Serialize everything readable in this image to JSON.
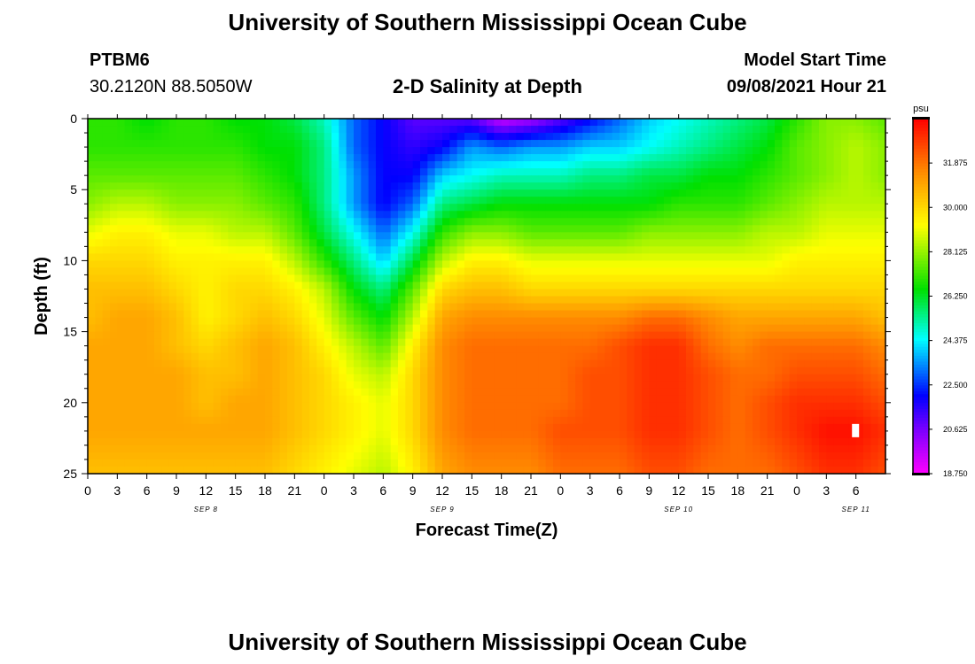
{
  "header": {
    "title": "University of Southern Mississippi Ocean Cube",
    "station_id": "PTBM6",
    "station_coords": "30.2120N  88.5050W",
    "plot_title": "2-D Salinity at Depth",
    "model_label": "Model Start Time",
    "model_time": "09/08/2021 Hour 21"
  },
  "footer": {
    "title": "University of Southern Mississippi Ocean Cube"
  },
  "chart_data": {
    "type": "heatmap",
    "title": "2-D Salinity at Depth",
    "xlabel": "Forecast Time(Z)",
    "ylabel": "Depth (ft)",
    "x_hours_from_start": [
      0,
      81
    ],
    "ylim": [
      0,
      25
    ],
    "x_tick_step_hours": 3,
    "x_tick_labels": [
      "0",
      "3",
      "6",
      "9",
      "12",
      "15",
      "18",
      "21",
      "0",
      "3",
      "6",
      "9",
      "12",
      "15",
      "18",
      "21",
      "0",
      "3",
      "6",
      "9",
      "12",
      "15",
      "18",
      "21",
      "0",
      "3",
      "6"
    ],
    "y_tick_values": [
      0,
      5,
      10,
      15,
      20,
      25
    ],
    "y_tick_labels": [
      "0",
      "5",
      "10",
      "15",
      "20",
      "25"
    ],
    "date_labels": [
      {
        "label": "SEP 8",
        "hour": 12
      },
      {
        "label": "SEP 9",
        "hour": 36
      },
      {
        "label": "SEP 10",
        "hour": 60
      },
      {
        "label": "SEP 11",
        "hour": 78
      }
    ],
    "colorbar": {
      "unit": "psu",
      "min": 18.75,
      "max": 33.75,
      "tick_values": [
        31.875,
        30.0,
        28.125,
        26.25,
        24.375,
        22.5,
        20.625,
        18.75
      ],
      "tick_labels": [
        "31.875",
        "30.000",
        "28.125",
        "26.250",
        "24.375",
        "22.500",
        "20.625",
        "18.750"
      ]
    },
    "grid_hours": [
      0,
      3,
      6,
      9,
      12,
      15,
      18,
      21,
      24,
      27,
      30,
      33,
      36,
      39,
      42,
      45,
      48,
      51,
      54,
      57,
      60,
      63,
      66,
      69,
      72,
      75,
      78,
      81
    ],
    "grid_depths": [
      0,
      2,
      4,
      6,
      8,
      10,
      12,
      14,
      16,
      18,
      20,
      22,
      25
    ],
    "salinity_psu": [
      [
        27.0,
        27.0,
        26.5,
        27.0,
        27.0,
        26.5,
        26.5,
        26.0,
        25.0,
        23.0,
        22.0,
        21.0,
        21.0,
        21.0,
        19.5,
        20.0,
        21.0,
        22.0,
        23.0,
        24.0,
        24.5,
        25.0,
        25.5,
        26.0,
        27.0,
        28.0,
        28.0,
        27.5
      ],
      [
        27.0,
        27.0,
        27.0,
        27.0,
        27.0,
        27.0,
        26.5,
        26.5,
        25.5,
        23.0,
        22.0,
        21.5,
        22.0,
        23.5,
        23.0,
        23.5,
        23.5,
        24.0,
        24.0,
        24.5,
        25.0,
        25.5,
        26.0,
        26.5,
        27.5,
        28.0,
        28.5,
        28.0
      ],
      [
        27.5,
        27.5,
        27.5,
        27.5,
        27.5,
        27.5,
        27.0,
        26.5,
        25.5,
        23.5,
        22.0,
        22.0,
        24.0,
        24.5,
        25.0,
        25.0,
        25.0,
        25.5,
        25.5,
        26.0,
        26.0,
        26.5,
        26.5,
        27.0,
        27.5,
        28.0,
        28.5,
        28.0
      ],
      [
        28.0,
        28.5,
        28.5,
        28.0,
        28.0,
        28.0,
        27.5,
        27.0,
        25.5,
        23.5,
        22.0,
        23.0,
        25.5,
        26.0,
        26.5,
        26.5,
        26.5,
        26.5,
        26.5,
        26.5,
        27.0,
        27.0,
        27.0,
        27.5,
        28.0,
        28.5,
        28.5,
        28.5
      ],
      [
        29.0,
        29.5,
        29.5,
        29.0,
        29.0,
        28.5,
        28.5,
        27.5,
        26.0,
        24.5,
        23.0,
        24.5,
        27.0,
        28.0,
        28.0,
        27.5,
        27.5,
        27.5,
        27.5,
        28.0,
        28.0,
        28.0,
        28.0,
        28.5,
        28.5,
        29.0,
        29.0,
        29.0
      ],
      [
        30.0,
        30.0,
        30.0,
        29.5,
        29.5,
        29.5,
        29.5,
        28.5,
        27.0,
        25.5,
        24.0,
        26.0,
        28.5,
        29.5,
        29.5,
        29.0,
        29.0,
        29.0,
        29.0,
        29.0,
        29.0,
        29.0,
        29.0,
        29.0,
        29.5,
        29.5,
        29.5,
        29.5
      ],
      [
        30.5,
        30.5,
        30.5,
        30.0,
        29.5,
        30.0,
        30.0,
        29.5,
        28.5,
        26.5,
        25.5,
        27.5,
        30.0,
        30.5,
        30.5,
        30.0,
        30.0,
        30.0,
        30.0,
        30.0,
        30.0,
        30.0,
        30.0,
        30.0,
        30.0,
        30.0,
        30.0,
        30.0
      ],
      [
        30.5,
        31.0,
        31.0,
        30.5,
        29.5,
        30.0,
        30.5,
        30.0,
        29.0,
        27.5,
        26.5,
        28.5,
        31.0,
        31.5,
        31.5,
        31.5,
        31.5,
        31.5,
        31.5,
        32.0,
        32.0,
        31.5,
        31.0,
        31.0,
        31.0,
        31.0,
        31.0,
        30.5
      ],
      [
        31.0,
        31.0,
        31.0,
        30.5,
        30.0,
        30.5,
        31.0,
        30.5,
        29.5,
        28.5,
        27.5,
        29.5,
        31.5,
        32.0,
        32.0,
        32.0,
        32.0,
        32.0,
        32.5,
        33.0,
        33.0,
        32.0,
        31.5,
        32.0,
        32.0,
        32.0,
        32.0,
        31.5
      ],
      [
        31.0,
        31.0,
        31.0,
        31.0,
        30.5,
        30.5,
        31.0,
        30.5,
        30.0,
        29.0,
        28.5,
        30.0,
        31.5,
        32.0,
        32.0,
        32.0,
        32.0,
        32.5,
        32.5,
        33.0,
        33.0,
        32.5,
        32.0,
        32.0,
        32.5,
        32.5,
        32.5,
        32.0
      ],
      [
        31.0,
        31.0,
        31.0,
        31.0,
        30.5,
        31.0,
        31.0,
        30.5,
        30.0,
        29.5,
        29.0,
        30.0,
        31.5,
        32.0,
        32.0,
        32.0,
        32.0,
        32.5,
        32.5,
        33.0,
        33.0,
        32.5,
        32.0,
        32.5,
        33.0,
        33.0,
        33.0,
        32.5
      ],
      [
        31.0,
        31.0,
        31.0,
        31.0,
        31.0,
        31.0,
        31.0,
        30.5,
        30.0,
        29.5,
        29.0,
        30.0,
        31.5,
        32.0,
        32.0,
        32.0,
        32.5,
        32.5,
        32.5,
        33.0,
        33.0,
        32.5,
        32.0,
        32.5,
        33.0,
        33.5,
        33.5,
        33.0
      ],
      [
        30.5,
        30.5,
        30.5,
        30.5,
        30.5,
        30.5,
        30.5,
        30.0,
        29.5,
        29.0,
        28.5,
        29.5,
        31.0,
        31.5,
        31.5,
        31.5,
        32.0,
        32.0,
        32.0,
        32.5,
        32.5,
        32.0,
        32.0,
        32.0,
        32.5,
        33.0,
        33.0,
        32.5
      ]
    ]
  }
}
